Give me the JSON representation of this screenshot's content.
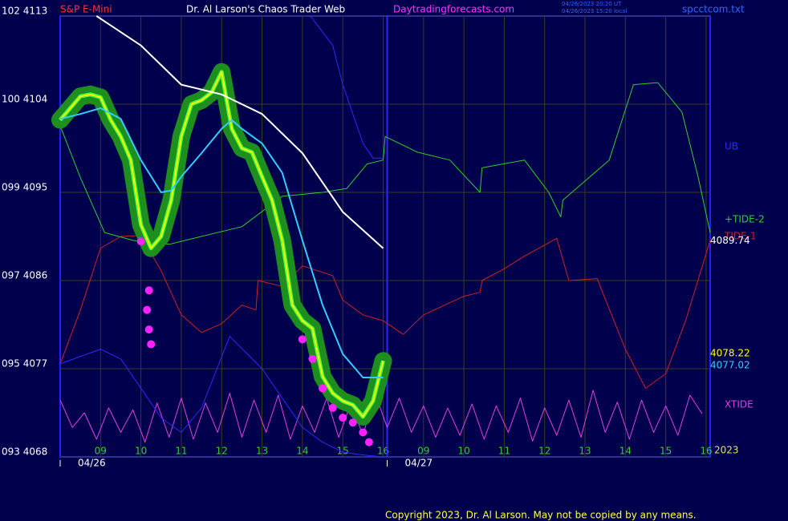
{
  "header": {
    "symbol": "S&P E-Mini",
    "site_title": "Dr. Al Larson's Chaos Trader Web",
    "url": "Daytradingforecasts.com",
    "time_ut": "04/26/2023 20:20 UT",
    "time_local": "04/26/2023 15:20 local",
    "file": "spcctcom.txt"
  },
  "chart_data": {
    "type": "line",
    "xlim": [
      0,
      16.1
    ],
    "ylim": [
      4068,
      4113
    ],
    "grid": true,
    "yticks": [
      {
        "value": 4113,
        "label": "102 4113"
      },
      {
        "value": 4104,
        "label": "100 4104"
      },
      {
        "value": 4095,
        "label": "099 4095"
      },
      {
        "value": 4086,
        "label": "097 4086"
      },
      {
        "value": 4077,
        "label": "095 4077"
      },
      {
        "value": 4068,
        "label": "093 4068"
      }
    ],
    "xticks": [
      {
        "value": 1,
        "label": "09"
      },
      {
        "value": 2,
        "label": "10"
      },
      {
        "value": 3,
        "label": "11"
      },
      {
        "value": 4,
        "label": "12"
      },
      {
        "value": 5,
        "label": "13"
      },
      {
        "value": 6,
        "label": "14"
      },
      {
        "value": 7,
        "label": "15"
      },
      {
        "value": 8,
        "label": "16"
      },
      {
        "value": 9,
        "label": "09"
      },
      {
        "value": 10,
        "label": "10"
      },
      {
        "value": 11,
        "label": "11"
      },
      {
        "value": 12,
        "label": "12"
      },
      {
        "value": 13,
        "label": "13"
      },
      {
        "value": 14,
        "label": "14"
      },
      {
        "value": 15,
        "label": "15"
      },
      {
        "value": 16,
        "label": "16"
      }
    ],
    "date_ticks": [
      {
        "value": 0,
        "label": "04/26"
      },
      {
        "value": 8.1,
        "label": "04/27"
      }
    ],
    "year": "2023",
    "series": [
      {
        "color": "#ffff00",
        "halo_color": "#1e8f1e",
        "x": [
          0,
          0.25,
          0.5,
          0.75,
          1,
          1.25,
          1.5,
          1.75,
          2,
          2.25,
          2.5,
          2.75,
          3,
          3.25,
          3.5,
          3.75,
          4,
          4.25,
          4.5,
          4.75,
          5,
          5.25,
          5.5,
          5.75,
          6,
          6.25,
          6.5,
          6.75,
          7,
          7.25,
          7.5,
          7.75,
          8
        ],
        "values": [
          4102.4,
          4103.6,
          4104.8,
          4105,
          4104.7,
          4102.4,
          4100.7,
          4098.3,
          4091.7,
          4089.3,
          4090.5,
          4094.2,
          4100.7,
          4104,
          4104.4,
          4105.2,
          4107.3,
          4101.5,
          4099.5,
          4099.1,
          4096.6,
          4094.2,
          4090.1,
          4083.5,
          4081.9,
          4081.1,
          4076.2,
          4074.5,
          4073.7,
          4073.3,
          4072.1,
          4073.7,
          4077.8
        ]
      },
      {
        "color": "#33ccff",
        "x": [
          0,
          0.5,
          1,
          1.5,
          2,
          2.5,
          2.75,
          3,
          3.5,
          4,
          4.25,
          4.5,
          5,
          5.5,
          6,
          6.5,
          7,
          7.5,
          8
        ],
        "values": [
          4102.5,
          4103,
          4103.6,
          4102.5,
          4098.3,
          4095,
          4095.2,
          4096.6,
          4099,
          4101.5,
          4102.4,
          4101.5,
          4100,
          4097,
          4090.1,
          4083.5,
          4078.5,
          4076.1,
          4076.1
        ]
      },
      {
        "color": "#ffffff",
        "x": [
          0.9,
          2,
          3,
          4,
          5,
          6,
          7,
          8
        ],
        "values": [
          4113,
          4110,
          4106,
          4105,
          4103,
          4099,
          4093,
          4089.3
        ]
      },
      {
        "name": "UB",
        "color": "#2a2aff",
        "x": [
          6.2,
          6.75,
          7,
          7.5,
          7.75,
          8
        ],
        "values": [
          4113,
          4110,
          4106,
          4100,
          4098.5,
          4098.5
        ]
      },
      {
        "color": "#2a2aff",
        "x": [
          0,
          1,
          1.5,
          2.5,
          3,
          3.5,
          4.2,
          5,
          5.5,
          6,
          6.5,
          7,
          7.5,
          8
        ],
        "values": [
          4077.5,
          4079,
          4078,
          4072,
          4070.5,
          4073,
          4080.3,
          4077,
          4074,
          4071,
          4069.5,
          4068.5,
          4068.2,
          4068
        ]
      },
      {
        "name": "+TIDE-2",
        "color": "#33cc33",
        "x": [
          0,
          0.5,
          1.1,
          1.8,
          2.7,
          3,
          4.5,
          5.5,
          6.5,
          7.1,
          7.6,
          8,
          8.05,
          8.85,
          9.65,
          10.4,
          10.45,
          11.5,
          12.1,
          12.4,
          12.45,
          13.6,
          14.2,
          14.8,
          15.4,
          15.8,
          16.1
        ],
        "values": [
          4101.8,
          4096.5,
          4090.9,
          4090.1,
          4089.7,
          4090,
          4091.5,
          4094.6,
          4095,
          4095.4,
          4097.9,
          4098.3,
          4100.7,
          4099.1,
          4098.3,
          4095,
          4097.5,
          4098.3,
          4095,
          4092.5,
          4094.2,
          4098.3,
          4106,
          4106.2,
          4103.2,
          4096.6,
          4090.9
        ]
      },
      {
        "name": "TIDE-1",
        "color": "#cc2222",
        "x": [
          0,
          0.5,
          1,
          1.5,
          2,
          2.5,
          3,
          3.5,
          4,
          4.5,
          4.85,
          4.9,
          5.5,
          6,
          6.75,
          7,
          7.5,
          8,
          8.5,
          9,
          10,
          10.4,
          10.45,
          11,
          11.5,
          12.3,
          12.6,
          13.3,
          14,
          14.5,
          15,
          15.5,
          16.1
        ],
        "values": [
          4077.5,
          4083,
          4089.3,
          4090.5,
          4090.6,
          4087,
          4082.5,
          4080.7,
          4081.6,
          4083.5,
          4083,
          4086,
          4085.4,
          4087.5,
          4086.5,
          4084,
          4082.5,
          4081.9,
          4080.5,
          4082.5,
          4084.4,
          4084.8,
          4086,
          4087.2,
          4088.5,
          4090.3,
          4086,
          4086.2,
          4079,
          4075,
          4076.5,
          4082,
          4090.1
        ]
      },
      {
        "name": "XTIDE",
        "color": "#e040e0",
        "x": [
          0,
          0.3,
          0.6,
          0.9,
          1.2,
          1.5,
          1.8,
          2.1,
          2.4,
          2.7,
          3,
          3.3,
          3.6,
          3.9,
          4.2,
          4.5,
          4.8,
          5.1,
          5.4,
          5.7,
          6,
          6.3,
          6.6,
          6.9,
          7.2,
          7.5,
          7.8,
          8.1,
          8.4,
          8.7,
          9,
          9.3,
          9.6,
          9.9,
          10.2,
          10.5,
          10.8,
          11.1,
          11.4,
          11.7,
          12,
          12.3,
          12.6,
          12.9,
          13.2,
          13.5,
          13.8,
          14.1,
          14.4,
          14.7,
          15,
          15.3,
          15.6,
          15.9
        ],
        "values": [
          4073.8,
          4071,
          4072.5,
          4069.8,
          4073,
          4070.5,
          4072.8,
          4069.5,
          4073.5,
          4070,
          4074,
          4069.8,
          4073.5,
          4070.5,
          4074.5,
          4070,
          4073.8,
          4070.5,
          4074.3,
          4069.8,
          4073.2,
          4070.5,
          4074,
          4070,
          4073.5,
          4070.2,
          4074.5,
          4071,
          4074,
          4070.5,
          4073.2,
          4070,
          4073,
          4070.2,
          4073.4,
          4069.8,
          4073.2,
          4070.5,
          4074,
          4069.6,
          4073,
          4070.2,
          4073.8,
          4070,
          4074.8,
          4070.5,
          4073.6,
          4069.8,
          4073.8,
          4070.5,
          4073.2,
          4070.2,
          4074.3,
          4072.4
        ]
      }
    ],
    "dots": {
      "color": "#ff22ff",
      "x": [
        2,
        2.2,
        2.15,
        2.2,
        2.25,
        6,
        6.25,
        6.5,
        6.75,
        7,
        7.25,
        7.5,
        7.65
      ],
      "values": [
        4090,
        4085,
        4083,
        4081,
        4079.5,
        4080,
        4078,
        4075,
        4073,
        4072,
        4071.5,
        4070.5,
        4069.5
      ]
    },
    "end_labels": [
      4089.74,
      4078.22,
      4077.02
    ],
    "end_label_colors": [
      "#ffffff",
      "#ffff00",
      "#33ccff"
    ]
  },
  "footer": "Copyright 2023, Dr. Al Larson. May not be copied by any means."
}
